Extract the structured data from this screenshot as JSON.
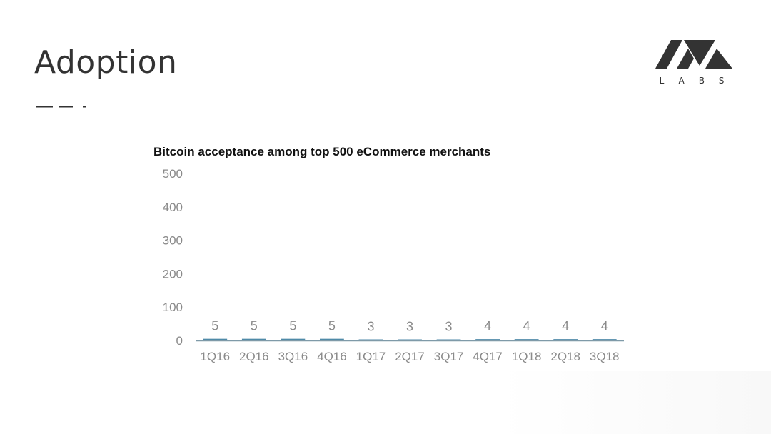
{
  "slide": {
    "title": "Adoption",
    "logo_text": "LABS"
  },
  "colors": {
    "title": "#333333",
    "axis_label": "#8a8a8a",
    "bar": "#4f8aa8",
    "axis_line": "#7f9aa8",
    "accent": "#333333"
  },
  "chart_data": {
    "type": "bar",
    "title": "Bitcoin acceptance among top 500 eCommerce merchants",
    "categories": [
      "1Q16",
      "2Q16",
      "3Q16",
      "4Q16",
      "1Q17",
      "2Q17",
      "3Q17",
      "4Q17",
      "1Q18",
      "2Q18",
      "3Q18"
    ],
    "values": [
      5,
      5,
      5,
      5,
      3,
      3,
      3,
      4,
      4,
      4,
      4
    ],
    "data_labels": [
      "5",
      "5",
      "5",
      "5",
      "3",
      "3",
      "3",
      "4",
      "4",
      "4",
      "4"
    ],
    "ylim": [
      0,
      500
    ],
    "yticks": [
      0,
      100,
      200,
      300,
      400,
      500
    ],
    "ytick_labels": [
      "0",
      "100",
      "200",
      "300",
      "400",
      "500"
    ],
    "xlabel": "",
    "ylabel": "",
    "grid": false,
    "legend": "none"
  }
}
